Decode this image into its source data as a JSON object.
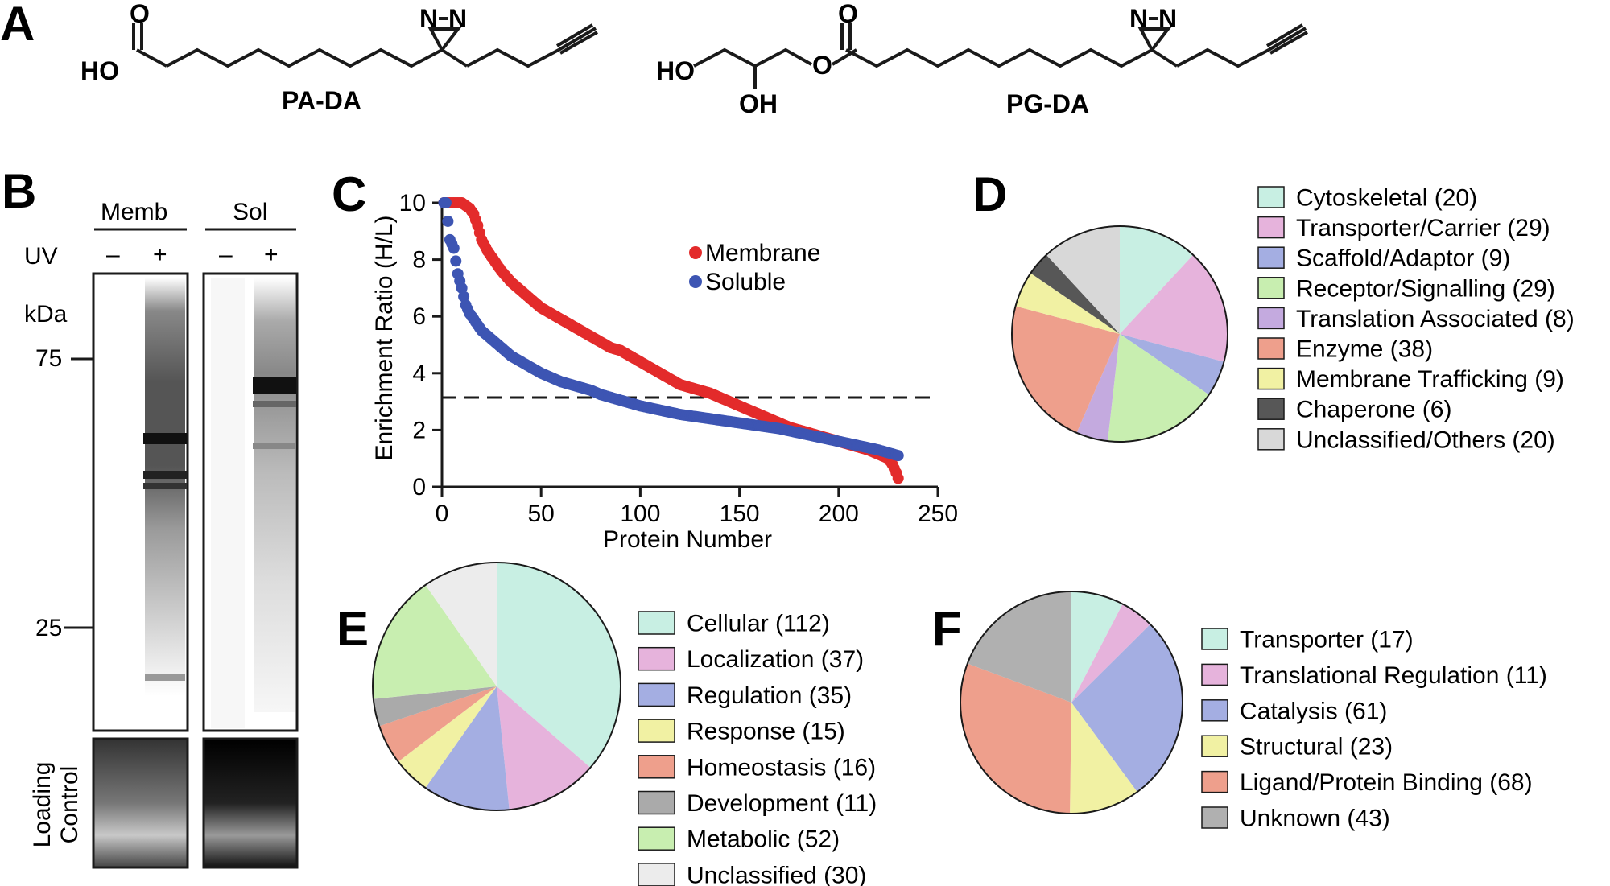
{
  "panels": {
    "a": "A",
    "b": "B",
    "c": "C",
    "d": "D",
    "e": "E",
    "f": "F"
  },
  "chem": {
    "pa_name": "PA-DA",
    "pg_name": "PG-DA",
    "atoms": {
      "n": "N",
      "o": "O",
      "ho": "HO",
      "oh": "OH"
    }
  },
  "gel": {
    "memb_label": "Memb",
    "sol_label": "Sol",
    "uv_label": "UV",
    "minus": "–",
    "plus": "+",
    "kda_label": "kDa",
    "marker_75": "75",
    "marker_25": "25",
    "loading_control_line1": "Loading",
    "loading_control_line2": "Control"
  },
  "colors": {
    "membrane": "#e32b2b",
    "soluble": "#3d55b3",
    "cytoskeletal": "#c8efe3",
    "transporter_carrier": "#e6b3dc",
    "scaffold_adaptor": "#a4aee2",
    "receptor_signalling": "#c8eeb0",
    "translation_associated": "#c4aadf",
    "enzyme": "#ee9f8c",
    "membrane_trafficking": "#f1f1a3",
    "chaperone": "#575757",
    "unclassified_others": "#d8d8d8",
    "unclassified_light": "#ececec",
    "development_gray": "#aaaaaa",
    "unknown_gray": "#b0b0b0"
  },
  "chart_data": [
    {
      "id": "C",
      "type": "scatter",
      "xlabel": "Protein Number",
      "ylabel": "Enrichment Ratio (H/L)",
      "xlim": [
        0,
        250
      ],
      "ylim": [
        0,
        10
      ],
      "xticks": [
        "0",
        "50",
        "100",
        "150",
        "200",
        "250"
      ],
      "yticks": [
        "0",
        "2",
        "4",
        "6",
        "8",
        "10"
      ],
      "threshold": 3,
      "legend_position": "top-right",
      "series": [
        {
          "name": "Membrane",
          "color": "#e32b2b",
          "x": [
            1,
            3,
            5,
            8,
            10,
            12,
            14,
            16,
            18,
            20,
            23,
            26,
            30,
            35,
            40,
            45,
            50,
            55,
            60,
            65,
            70,
            75,
            80,
            85,
            90,
            95,
            100,
            105,
            110,
            115,
            120,
            125,
            130,
            135,
            140,
            145,
            150,
            155,
            160,
            165,
            170,
            175,
            180,
            185,
            190,
            195,
            200,
            205,
            210,
            215,
            220,
            225,
            227,
            229,
            230
          ],
          "y": [
            10,
            10,
            10,
            10,
            10,
            9.9,
            9.8,
            9.6,
            9.2,
            8.7,
            8.3,
            8.0,
            7.6,
            7.2,
            6.9,
            6.6,
            6.3,
            6.1,
            5.9,
            5.7,
            5.5,
            5.3,
            5.1,
            4.9,
            4.8,
            4.6,
            4.4,
            4.2,
            4.0,
            3.8,
            3.6,
            3.5,
            3.4,
            3.3,
            3.15,
            3.0,
            2.85,
            2.7,
            2.55,
            2.4,
            2.25,
            2.1,
            2.0,
            1.9,
            1.8,
            1.7,
            1.6,
            1.5,
            1.4,
            1.3,
            1.15,
            1.0,
            0.8,
            0.5,
            0.3
          ]
        },
        {
          "name": "Soluble",
          "color": "#3d55b3",
          "x": [
            1,
            2,
            4,
            6,
            8,
            10,
            12,
            14,
            16,
            18,
            20,
            25,
            30,
            35,
            40,
            45,
            50,
            55,
            60,
            65,
            70,
            75,
            80,
            85,
            90,
            95,
            100,
            110,
            120,
            130,
            140,
            150,
            160,
            170,
            180,
            190,
            200,
            210,
            220,
            225,
            230
          ],
          "y": [
            10,
            10,
            8.7,
            8.4,
            7.5,
            7.0,
            6.4,
            6.1,
            5.9,
            5.7,
            5.5,
            5.2,
            4.9,
            4.6,
            4.4,
            4.2,
            4.0,
            3.85,
            3.7,
            3.6,
            3.5,
            3.4,
            3.25,
            3.15,
            3.05,
            2.95,
            2.85,
            2.7,
            2.55,
            2.45,
            2.35,
            2.25,
            2.15,
            2.05,
            1.9,
            1.75,
            1.6,
            1.45,
            1.3,
            1.2,
            1.1
          ]
        }
      ]
    },
    {
      "id": "D",
      "type": "pie",
      "start": "top, clockwise",
      "legend_position": "right",
      "slices": [
        {
          "label": "Cytoskeletal (20)",
          "value": 20,
          "color": "#c8efe3"
        },
        {
          "label": "Transporter/Carrier (29)",
          "value": 29,
          "color": "#e6b3dc"
        },
        {
          "label": "Scaffold/Adaptor (9)",
          "value": 9,
          "color": "#a4aee2"
        },
        {
          "label": "Receptor/Signalling (29)",
          "value": 29,
          "color": "#c8eeb0"
        },
        {
          "label": "Translation Associated (8)",
          "value": 8,
          "color": "#c4aadf"
        },
        {
          "label": "Enzyme (38)",
          "value": 38,
          "color": "#ee9f8c"
        },
        {
          "label": "Membrane Trafficking (9)",
          "value": 9,
          "color": "#f1f1a3"
        },
        {
          "label": "Chaperone (6)",
          "value": 6,
          "color": "#575757"
        },
        {
          "label": "Unclassified/Others (20)",
          "value": 20,
          "color": "#d8d8d8"
        }
      ]
    },
    {
      "id": "E",
      "type": "pie",
      "start": "top, clockwise",
      "legend_position": "right",
      "slices": [
        {
          "label": "Cellular (112)",
          "value": 112,
          "color": "#c8efe3"
        },
        {
          "label": "Localization (37)",
          "value": 37,
          "color": "#e6b3dc"
        },
        {
          "label": "Regulation (35)",
          "value": 35,
          "color": "#a4aee2"
        },
        {
          "label": "Response (15)",
          "value": 15,
          "color": "#f1f1a3"
        },
        {
          "label": "Homeostasis (16)",
          "value": 16,
          "color": "#ee9f8c"
        },
        {
          "label": "Development (11)",
          "value": 11,
          "color": "#aaaaaa"
        },
        {
          "label": "Metabolic (52)",
          "value": 52,
          "color": "#c8eeb0"
        },
        {
          "label": "Unclassified (30)",
          "value": 30,
          "color": "#ececec"
        }
      ]
    },
    {
      "id": "F",
      "type": "pie",
      "start": "top, clockwise",
      "legend_position": "right",
      "slices": [
        {
          "label": "Transporter (17)",
          "value": 17,
          "color": "#c8efe3"
        },
        {
          "label": "Translational Regulation (11)",
          "value": 11,
          "color": "#e6b3dc"
        },
        {
          "label": "Catalysis (61)",
          "value": 61,
          "color": "#a4aee2"
        },
        {
          "label": "Structural (23)",
          "value": 23,
          "color": "#f1f1a3"
        },
        {
          "label": "Ligand/Protein Binding (68)",
          "value": 68,
          "color": "#ee9f8c"
        },
        {
          "label": "Unknown (43)",
          "value": 43,
          "color": "#b0b0b0"
        }
      ]
    }
  ]
}
